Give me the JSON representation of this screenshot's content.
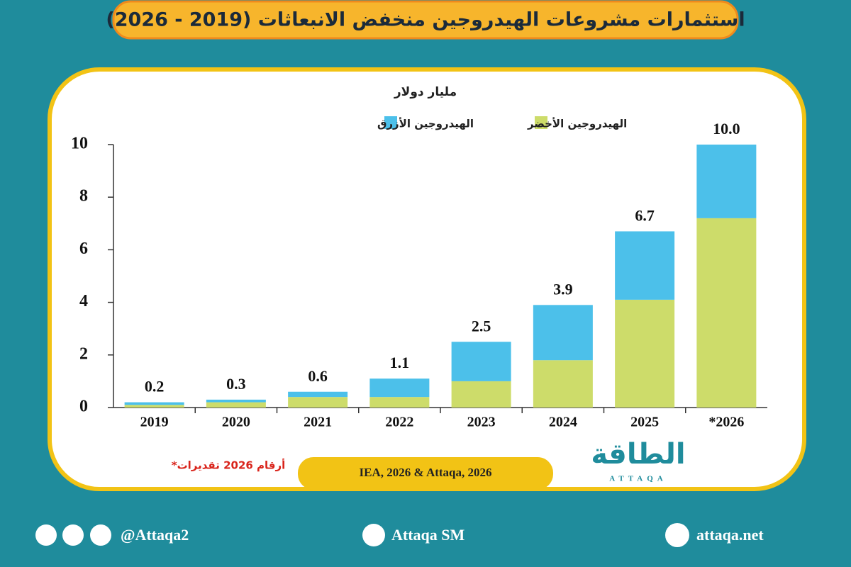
{
  "chart_data": {
    "type": "stacked_bar",
    "title": "استثمارات مشروعات الهيدروجين منخفض الانبعاثات (2019 - 2026)",
    "unit": "مليار دولار",
    "categories": [
      "2019",
      "2020",
      "2021",
      "2022",
      "2023",
      "2024",
      "2025",
      "*2026"
    ],
    "series": [
      {
        "name": "الهيدروجين الأخضر",
        "color": "#cddc6a",
        "values": [
          0.1,
          0.2,
          0.4,
          0.4,
          1.0,
          1.8,
          4.1,
          7.2
        ]
      },
      {
        "name": "الهيدروجين الأزرق",
        "color": "#4cc0ea",
        "values": [
          0.1,
          0.1,
          0.2,
          0.7,
          1.5,
          2.1,
          2.6,
          2.8
        ]
      }
    ],
    "totals": [
      0.2,
      0.3,
      0.6,
      1.1,
      2.5,
      3.9,
      6.7,
      10
    ],
    "totals_labels": [
      "0.2",
      "0.3",
      "0.6",
      "1.1",
      "2.5",
      "3.9",
      "6.7",
      "10.0"
    ],
    "ylim": [
      0,
      10
    ],
    "yticks": [
      0,
      2,
      4,
      6,
      8,
      10
    ],
    "note": "*أرقام 2026 تقديرات",
    "source": "IEA, 2026 & Attaqa, 2026"
  },
  "logo": {
    "name": "الطاقة",
    "latin": "ATTAQA"
  },
  "footer": {
    "handle": "@Attaqa2",
    "youtube": "Attaqa SM",
    "website": "attaqa.net"
  }
}
